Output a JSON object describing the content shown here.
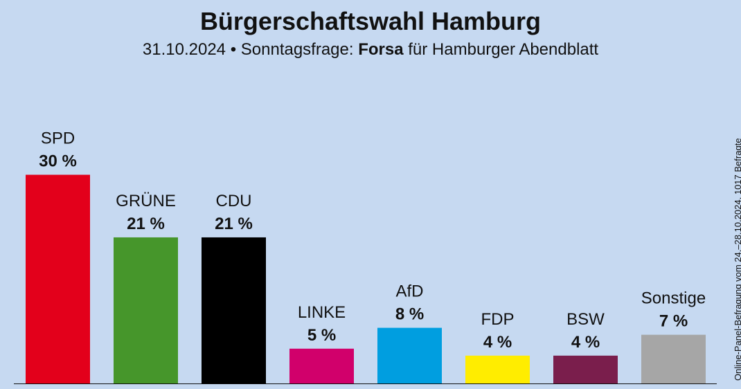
{
  "header": {
    "title": "Bürgerschaftswahl Hamburg",
    "subtitle_prefix": "31.10.2024 • Sonntagsfrage:",
    "subtitle_pollster": "Forsa",
    "subtitle_suffix": "für Hamburger Abendblatt"
  },
  "source_note": "Online-Panel-Befragung vom 24.–28.10.2024, 1017 Befragte",
  "chart_data": {
    "type": "bar",
    "title": "Bürgerschaftswahl Hamburg",
    "xlabel": "",
    "ylabel": "",
    "ylim": [
      0,
      30
    ],
    "grid": false,
    "legend": "none",
    "unit": "%",
    "categories": [
      "SPD",
      "GRÜNE",
      "CDU",
      "LINKE",
      "AfD",
      "FDP",
      "BSW",
      "Sonstige"
    ],
    "values": [
      30,
      21,
      21,
      5,
      8,
      4,
      4,
      7
    ],
    "value_labels": [
      "30 %",
      "21 %",
      "21 %",
      "5 %",
      "8 %",
      "4 %",
      "4 %",
      "7 %"
    ],
    "colors": [
      "#e3001b",
      "#46962b",
      "#000000",
      "#d1006b",
      "#009ee0",
      "#ffed00",
      "#7a1e4c",
      "#a6a6a6"
    ]
  }
}
